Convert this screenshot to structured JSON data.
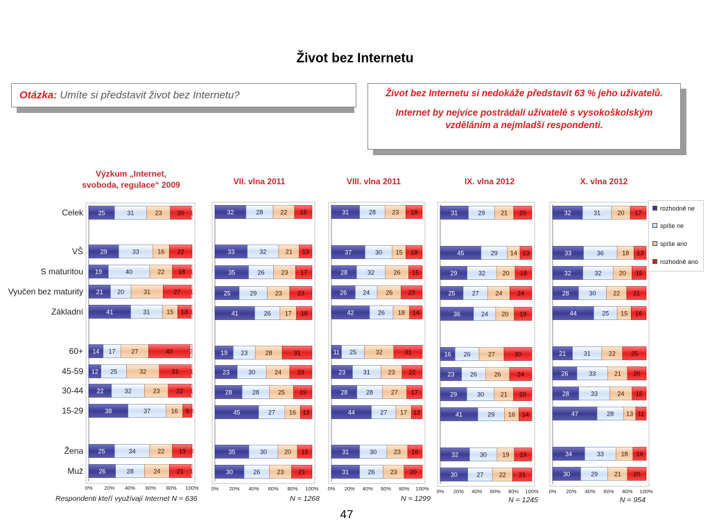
{
  "title": "Život bez Internetu",
  "question": {
    "label": "Otázka:",
    "text": "Umíte si představit život bez Internetu?"
  },
  "summary": [
    "Život bez Internetu si nedokáže představit 63 % jeho uživatelů.",
    "Internet by nejvíce postrádali uživatelé s vysokoškolským vzděláním a nejmladší respondenti."
  ],
  "page_number": "47",
  "chart_data": {
    "type": "bar",
    "orientation": "horizontal",
    "stacked": true,
    "xlim": [
      0,
      100
    ],
    "x_ticks": [
      "0%",
      "20%",
      "40%",
      "60%",
      "80%",
      "100%"
    ],
    "legend_position": "right",
    "categories": [
      "Celek",
      "VŠ",
      "S maturitou",
      "Vyučen bez maturity",
      "Základní",
      "60+",
      "45-59",
      "30-44",
      "15-29",
      "Žena",
      "Muž"
    ],
    "series": [
      {
        "name": "rozhodně ne",
        "color": "#3d3d94"
      },
      {
        "name": "spíše ne",
        "color": "#cfe0f6"
      },
      {
        "name": "spíše ano",
        "color": "#f2c49a"
      },
      {
        "name": "rozhodně ano",
        "color": "#e31d1d"
      },
      {
        "color": "#ffffff"
      }
    ],
    "panels": [
      {
        "title_lines": [
          "Výzkum „Internet,",
          "svoboda, regulace“ 2009"
        ],
        "note": "Respondenti kteří využívají Internet N = 636",
        "values": [
          [
            25,
            31,
            23,
            20,
            1
          ],
          [
            29,
            33,
            16,
            22
          ],
          [
            19,
            40,
            22,
            18,
            1
          ],
          [
            21,
            20,
            31,
            27,
            1
          ],
          [
            41,
            31,
            15,
            13,
            1
          ],
          [
            14,
            17,
            27,
            40,
            2
          ],
          [
            12,
            25,
            32,
            31,
            1
          ],
          [
            22,
            32,
            23,
            22,
            1
          ],
          [
            38,
            37,
            16,
            9,
            0
          ],
          [
            25,
            34,
            22,
            19,
            0
          ],
          [
            26,
            28,
            24,
            21,
            1
          ]
        ]
      },
      {
        "title_lines": [
          "VII. vlna 2011"
        ],
        "note": "N = 1268",
        "values": [
          [
            32,
            28,
            22,
            18
          ],
          [
            33,
            32,
            21,
            13
          ],
          [
            35,
            26,
            23,
            17
          ],
          [
            25,
            29,
            23,
            23
          ],
          [
            41,
            26,
            17,
            16
          ],
          [
            19,
            23,
            28,
            31
          ],
          [
            23,
            30,
            24,
            23
          ],
          [
            28,
            28,
            25,
            19
          ],
          [
            45,
            27,
            16,
            12
          ],
          [
            35,
            30,
            20,
            15
          ],
          [
            30,
            26,
            23,
            21
          ]
        ]
      },
      {
        "title_lines": [
          "VIII. vlna 2011"
        ],
        "note": "N = 1299",
        "values": [
          [
            31,
            28,
            23,
            18
          ],
          [
            37,
            30,
            15,
            18
          ],
          [
            28,
            32,
            26,
            15
          ],
          [
            26,
            24,
            26,
            23
          ],
          [
            42,
            26,
            18,
            14
          ],
          [
            11,
            25,
            32,
            31
          ],
          [
            23,
            31,
            23,
            22
          ],
          [
            28,
            28,
            27,
            17
          ],
          [
            44,
            27,
            17,
            12
          ],
          [
            31,
            30,
            23,
            16
          ],
          [
            31,
            26,
            23,
            20
          ]
        ]
      },
      {
        "title_lines": [
          "IX. vlna 2012"
        ],
        "note": "N = 1245",
        "values": [
          [
            31,
            29,
            21,
            20
          ],
          [
            45,
            29,
            14,
            13
          ],
          [
            29,
            32,
            20,
            18
          ],
          [
            25,
            27,
            24,
            24
          ],
          [
            36,
            24,
            20,
            19
          ],
          [
            16,
            26,
            27,
            30
          ],
          [
            23,
            26,
            26,
            24
          ],
          [
            29,
            30,
            21,
            20
          ],
          [
            41,
            29,
            16,
            14
          ],
          [
            32,
            30,
            19,
            19
          ],
          [
            30,
            27,
            22,
            21
          ]
        ]
      },
      {
        "title_lines": [
          "X. vlna 2012"
        ],
        "note": "N = 954",
        "values": [
          [
            32,
            31,
            20,
            17
          ],
          [
            33,
            36,
            18,
            13
          ],
          [
            32,
            32,
            20,
            15
          ],
          [
            28,
            30,
            22,
            21
          ],
          [
            44,
            25,
            15,
            16
          ],
          [
            21,
            31,
            22,
            25
          ],
          [
            26,
            33,
            21,
            20
          ],
          [
            28,
            33,
            24,
            15
          ],
          [
            47,
            28,
            13,
            11
          ],
          [
            34,
            33,
            18,
            14
          ],
          [
            30,
            29,
            21,
            20
          ]
        ]
      }
    ]
  }
}
